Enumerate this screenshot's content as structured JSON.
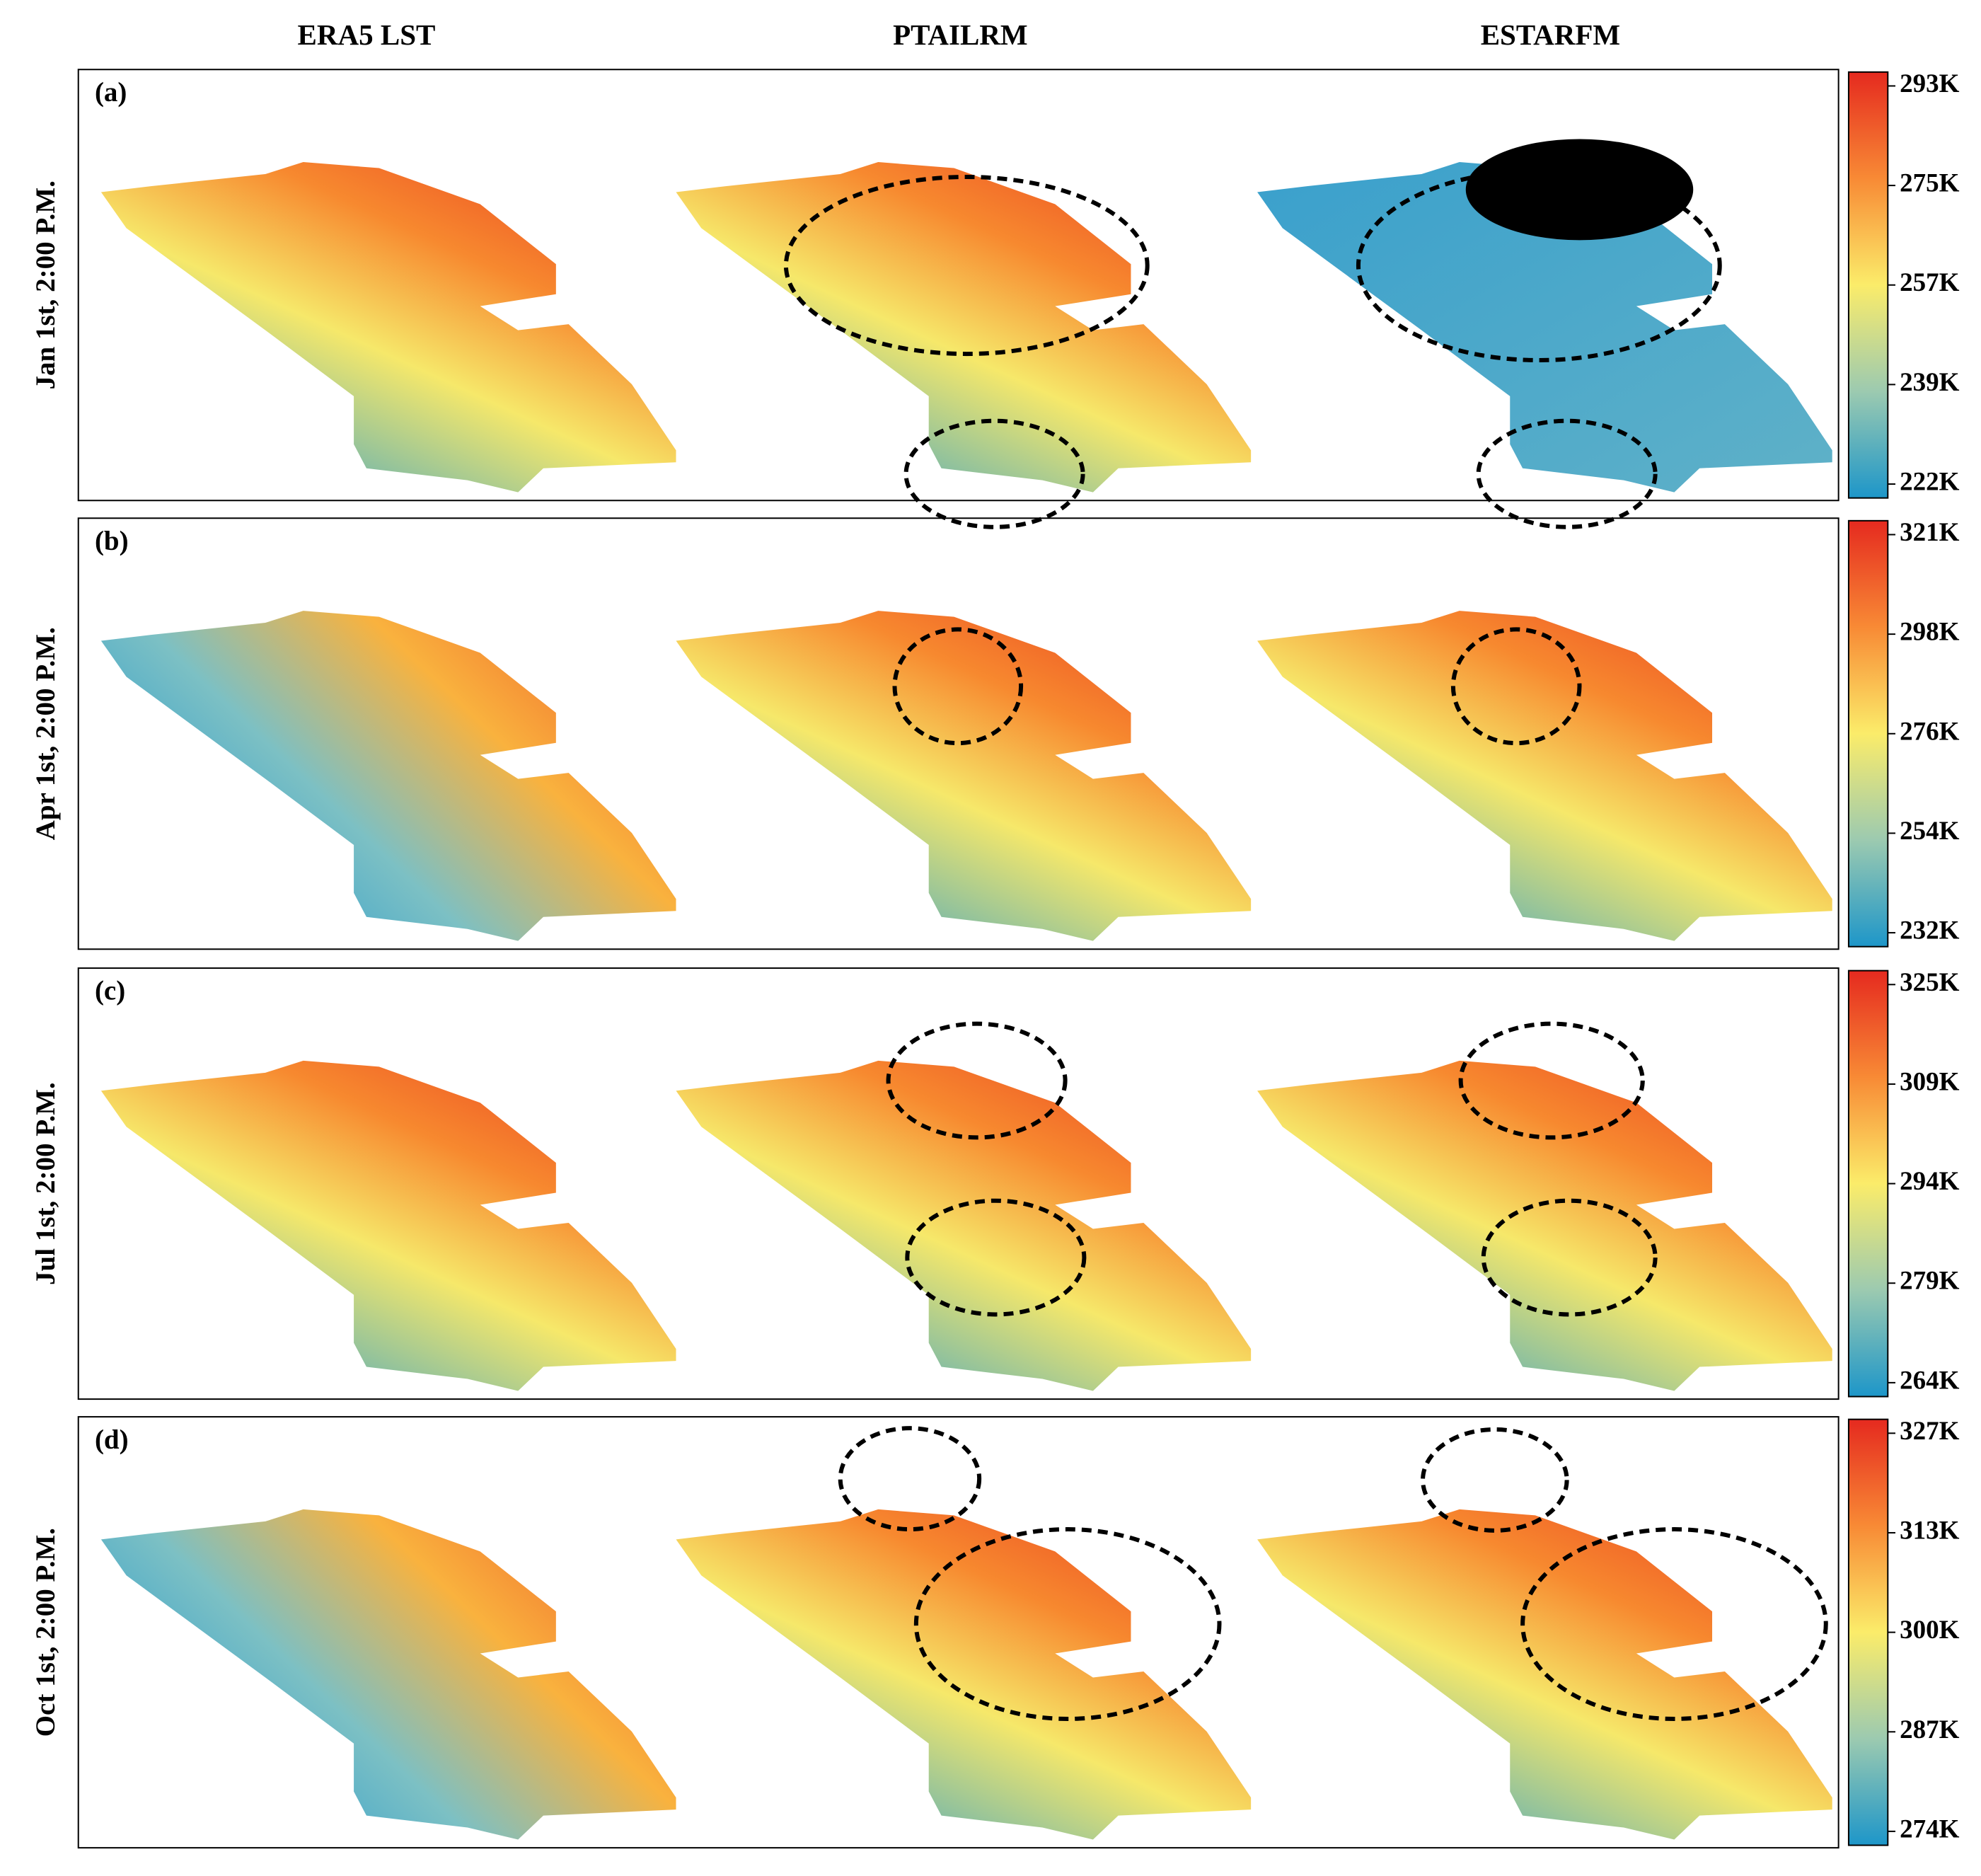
{
  "column_titles": [
    "ERA5 LST",
    "PTAILRM",
    "ESTARFM"
  ],
  "rows": [
    {
      "panel": "(a)",
      "label": "Jan 1st, 2:00 P.M.",
      "colorbar_ticks": [
        "293K",
        "275K",
        "257K",
        "239K",
        "222K"
      ]
    },
    {
      "panel": "(b)",
      "label": "Apr 1st, 2:00 P.M.",
      "colorbar_ticks": [
        "321K",
        "298K",
        "276K",
        "254K",
        "232K"
      ]
    },
    {
      "panel": "(c)",
      "label": "Jul 1st, 2:00 P.M.",
      "colorbar_ticks": [
        "325K",
        "309K",
        "294K",
        "279K",
        "264K"
      ]
    },
    {
      "panel": "(d)",
      "label": "Oct 1st, 2:00 P.M.",
      "colorbar_ticks": [
        "327K",
        "313K",
        "300K",
        "287K",
        "274K"
      ]
    }
  ]
}
